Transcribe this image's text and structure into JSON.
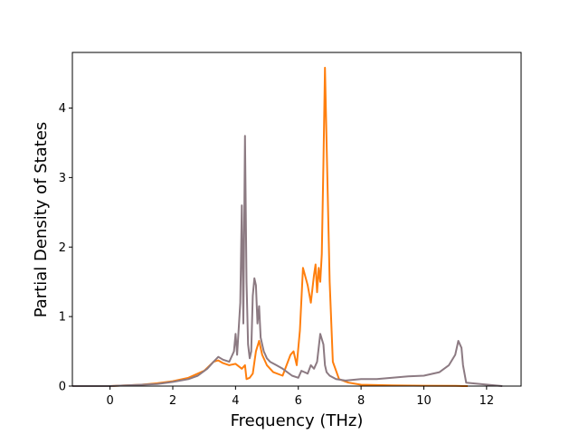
{
  "chart_data": {
    "type": "line",
    "title": "",
    "xlabel": "Frequency (THz)",
    "ylabel": "Partial Density of States",
    "xlim": [
      -1.2,
      13.1
    ],
    "ylim": [
      0,
      4.8
    ],
    "xticks": [
      0,
      2,
      4,
      6,
      8,
      10,
      12
    ],
    "yticks": [
      0,
      1,
      2,
      3,
      4
    ],
    "grid": false,
    "legend": "none",
    "series": [
      {
        "color": "#ff7f0e",
        "x": [
          -1.1,
          0,
          0.5,
          1,
          1.5,
          2,
          2.5,
          3,
          3.3,
          3.45,
          3.6,
          3.8,
          4.0,
          4.2,
          4.3,
          4.35,
          4.45,
          4.55,
          4.65,
          4.75,
          4.85,
          5.0,
          5.2,
          5.5,
          5.75,
          5.85,
          5.95,
          6.05,
          6.15,
          6.3,
          6.4,
          6.5,
          6.55,
          6.6,
          6.65,
          6.7,
          6.75,
          6.8,
          6.85,
          6.9,
          7.0,
          7.1,
          7.3,
          7.6,
          8,
          9,
          10,
          11,
          11.25,
          11.4
        ],
        "y": [
          0,
          0,
          0.01,
          0.02,
          0.04,
          0.07,
          0.12,
          0.22,
          0.35,
          0.37,
          0.33,
          0.3,
          0.32,
          0.25,
          0.3,
          0.1,
          0.12,
          0.18,
          0.5,
          0.65,
          0.45,
          0.3,
          0.2,
          0.15,
          0.45,
          0.5,
          0.3,
          0.8,
          1.7,
          1.45,
          1.2,
          1.6,
          1.75,
          1.35,
          1.7,
          1.5,
          1.9,
          3.2,
          4.58,
          3.5,
          1.5,
          0.35,
          0.1,
          0.05,
          0.02,
          0.01,
          0.005,
          0.002,
          0,
          0
        ]
      },
      {
        "color": "#8c7a82",
        "x": [
          -1.2,
          0,
          0.5,
          1,
          1.5,
          2,
          2.5,
          2.8,
          3.1,
          3.3,
          3.45,
          3.6,
          3.8,
          3.95,
          4.0,
          4.05,
          4.15,
          4.2,
          4.25,
          4.3,
          4.35,
          4.4,
          4.45,
          4.5,
          4.55,
          4.6,
          4.65,
          4.7,
          4.75,
          4.8,
          4.85,
          4.9,
          4.95,
          5.0,
          5.1,
          5.3,
          5.5,
          5.8,
          6.0,
          6.1,
          6.3,
          6.4,
          6.5,
          6.6,
          6.7,
          6.8,
          6.85,
          6.9,
          7.0,
          7.2,
          7.5,
          8,
          8.5,
          9,
          9.5,
          10,
          10.5,
          10.8,
          11.0,
          11.1,
          11.2,
          11.25,
          11.35,
          12.5
        ],
        "y": [
          0,
          0,
          0.01,
          0.02,
          0.03,
          0.06,
          0.1,
          0.15,
          0.25,
          0.35,
          0.42,
          0.38,
          0.35,
          0.5,
          0.75,
          0.45,
          1.2,
          2.6,
          0.9,
          3.6,
          1.5,
          0.6,
          0.4,
          0.5,
          1.3,
          1.55,
          1.45,
          0.9,
          1.15,
          0.7,
          0.6,
          0.5,
          0.45,
          0.4,
          0.35,
          0.3,
          0.25,
          0.15,
          0.12,
          0.22,
          0.18,
          0.3,
          0.25,
          0.35,
          0.75,
          0.6,
          0.3,
          0.2,
          0.15,
          0.1,
          0.08,
          0.1,
          0.1,
          0.12,
          0.14,
          0.15,
          0.2,
          0.3,
          0.45,
          0.65,
          0.55,
          0.3,
          0.05,
          0
        ]
      }
    ]
  }
}
